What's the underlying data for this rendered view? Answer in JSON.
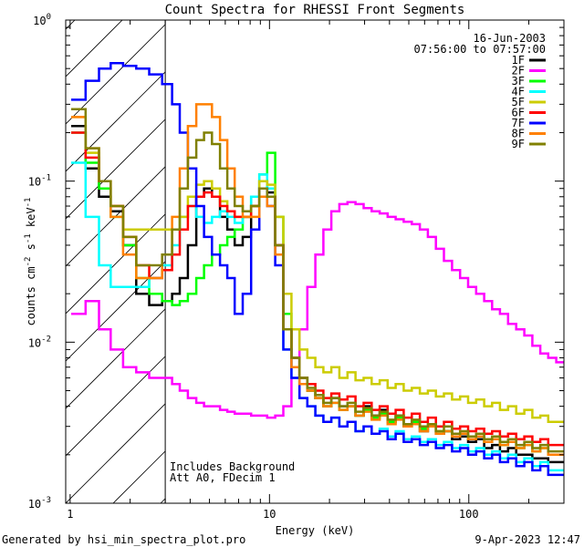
{
  "chart_data": {
    "type": "line",
    "title": "Count Spectra for RHESSI Front Segments",
    "xlabel": "Energy (keV)",
    "ylabel_parts": [
      "counts cm",
      "-2",
      " s",
      "-1",
      " keV",
      "-1"
    ],
    "xscale": "log",
    "yscale": "log",
    "xlim": [
      0.95,
      300
    ],
    "ylim": [
      0.001,
      1
    ],
    "x_ticks": [
      {
        "value": 1,
        "label": "1"
      },
      {
        "value": 10,
        "label": "10"
      },
      {
        "value": 100,
        "label": "100"
      }
    ],
    "y_ticks": [
      {
        "value": 0.001,
        "base": "10",
        "exp": "-3"
      },
      {
        "value": 0.01,
        "base": "10",
        "exp": "-2"
      },
      {
        "value": 0.1,
        "base": "10",
        "exp": "-1"
      },
      {
        "value": 1,
        "base": "10",
        "exp": "0"
      }
    ],
    "hatch_region": {
      "x_from": 0.95,
      "x_to": 3
    },
    "date": "16-Jun-2003",
    "time_range": "07:56:00 to 07:57:00",
    "annotation_lines": [
      "Includes Background",
      "Att A0, FDecim 1"
    ],
    "legend_position": "top-right",
    "energy": [
      1.1,
      1.3,
      1.5,
      1.7,
      2.0,
      2.3,
      2.7,
      3.1,
      3.4,
      3.7,
      4.1,
      4.5,
      4.9,
      5.4,
      5.9,
      6.4,
      7.0,
      7.7,
      8.5,
      9.3,
      10.2,
      11.2,
      12.3,
      13.5,
      14.8,
      16.2,
      17.8,
      19.5,
      21.4,
      23.5,
      25.8,
      28.3,
      31.1,
      34.1,
      37.4,
      41.0,
      45.0,
      49.4,
      54.2,
      59.5,
      65.3,
      71.6,
      78.6,
      86.3,
      94.7,
      104,
      114,
      125,
      137,
      150,
      165,
      181,
      199,
      218,
      239,
      262,
      288
    ],
    "series": [
      {
        "name": "1F",
        "color": "#000000",
        "values": [
          0.22,
          0.12,
          0.08,
          0.065,
          0.04,
          0.02,
          0.017,
          0.018,
          0.02,
          0.025,
          0.04,
          0.08,
          0.09,
          0.08,
          0.06,
          0.05,
          0.04,
          0.045,
          0.07,
          0.1,
          0.085,
          0.04,
          0.012,
          0.008,
          0.006,
          0.005,
          0.0045,
          0.004,
          0.0045,
          0.004,
          0.004,
          0.0035,
          0.004,
          0.0035,
          0.0038,
          0.0032,
          0.0035,
          0.003,
          0.0032,
          0.0028,
          0.003,
          0.0027,
          0.0028,
          0.0025,
          0.0026,
          0.0024,
          0.0025,
          0.0022,
          0.0023,
          0.0021,
          0.0022,
          0.002,
          0.002,
          0.0019,
          0.0019,
          0.0018,
          0.0018
        ]
      },
      {
        "name": "2F",
        "color": "#ff00ff",
        "values": [
          0.015,
          0.018,
          0.012,
          0.009,
          0.007,
          0.0065,
          0.006,
          0.006,
          0.0055,
          0.005,
          0.0045,
          0.0042,
          0.004,
          0.004,
          0.0038,
          0.0037,
          0.0036,
          0.0036,
          0.0035,
          0.0035,
          0.0034,
          0.0035,
          0.004,
          0.006,
          0.012,
          0.022,
          0.035,
          0.05,
          0.065,
          0.072,
          0.074,
          0.072,
          0.068,
          0.065,
          0.063,
          0.06,
          0.058,
          0.056,
          0.054,
          0.05,
          0.045,
          0.038,
          0.032,
          0.028,
          0.025,
          0.022,
          0.02,
          0.018,
          0.016,
          0.015,
          0.013,
          0.012,
          0.011,
          0.0095,
          0.0085,
          0.008,
          0.0075
        ]
      },
      {
        "name": "3F",
        "color": "#00ff00",
        "values": [
          0.2,
          0.13,
          0.09,
          0.06,
          0.04,
          0.025,
          0.02,
          0.018,
          0.017,
          0.018,
          0.02,
          0.025,
          0.03,
          0.035,
          0.04,
          0.045,
          0.05,
          0.06,
          0.08,
          0.11,
          0.15,
          0.06,
          0.015,
          0.008,
          0.006,
          0.005,
          0.0045,
          0.004,
          0.0042,
          0.0038,
          0.004,
          0.0035,
          0.0038,
          0.0034,
          0.0036,
          0.0032,
          0.0034,
          0.003,
          0.0032,
          0.0029,
          0.003,
          0.0028,
          0.0028,
          0.0026,
          0.0027,
          0.0025,
          0.0026,
          0.0024,
          0.0025,
          0.0023,
          0.0024,
          0.0022,
          0.0023,
          0.0021,
          0.0022,
          0.002,
          0.002
        ]
      },
      {
        "name": "4F",
        "color": "#00ffff",
        "values": [
          0.13,
          0.06,
          0.03,
          0.022,
          0.022,
          0.022,
          0.025,
          0.03,
          0.04,
          0.06,
          0.07,
          0.06,
          0.055,
          0.06,
          0.065,
          0.06,
          0.055,
          0.06,
          0.08,
          0.11,
          0.09,
          0.035,
          0.009,
          0.006,
          0.0045,
          0.004,
          0.0035,
          0.0032,
          0.0034,
          0.003,
          0.0032,
          0.0028,
          0.003,
          0.0027,
          0.0029,
          0.0026,
          0.0028,
          0.0025,
          0.0026,
          0.0024,
          0.0025,
          0.0023,
          0.0024,
          0.0022,
          0.0023,
          0.0021,
          0.0022,
          0.002,
          0.0021,
          0.0019,
          0.002,
          0.0018,
          0.0019,
          0.0017,
          0.0018,
          0.0016,
          0.0016
        ]
      },
      {
        "name": "5F",
        "color": "#cccc00",
        "values": [
          0.25,
          0.15,
          0.1,
          0.07,
          0.05,
          0.05,
          0.05,
          0.05,
          0.05,
          0.06,
          0.08,
          0.095,
          0.1,
          0.09,
          0.075,
          0.065,
          0.06,
          0.06,
          0.07,
          0.1,
          0.095,
          0.06,
          0.02,
          0.012,
          0.009,
          0.008,
          0.007,
          0.0065,
          0.007,
          0.006,
          0.0065,
          0.0058,
          0.006,
          0.0055,
          0.0058,
          0.0052,
          0.0055,
          0.005,
          0.0052,
          0.0048,
          0.005,
          0.0046,
          0.0048,
          0.0044,
          0.0046,
          0.0042,
          0.0044,
          0.004,
          0.0042,
          0.0038,
          0.004,
          0.0036,
          0.0038,
          0.0034,
          0.0035,
          0.0032,
          0.0032
        ]
      },
      {
        "name": "6F",
        "color": "#ff0000",
        "values": [
          0.2,
          0.14,
          0.1,
          0.07,
          0.045,
          0.03,
          0.025,
          0.028,
          0.035,
          0.05,
          0.07,
          0.08,
          0.085,
          0.08,
          0.07,
          0.065,
          0.06,
          0.06,
          0.07,
          0.09,
          0.08,
          0.04,
          0.012,
          0.008,
          0.006,
          0.0055,
          0.005,
          0.0045,
          0.0048,
          0.0044,
          0.0046,
          0.004,
          0.0042,
          0.0038,
          0.004,
          0.0036,
          0.0038,
          0.0034,
          0.0036,
          0.0032,
          0.0034,
          0.003,
          0.0032,
          0.0029,
          0.003,
          0.0028,
          0.0029,
          0.0027,
          0.0028,
          0.0026,
          0.0027,
          0.0025,
          0.0026,
          0.0024,
          0.0025,
          0.0023,
          0.0023
        ]
      },
      {
        "name": "7F",
        "color": "#0000ff",
        "values": [
          0.32,
          0.42,
          0.5,
          0.54,
          0.52,
          0.5,
          0.46,
          0.4,
          0.3,
          0.2,
          0.12,
          0.07,
          0.045,
          0.035,
          0.03,
          0.025,
          0.015,
          0.02,
          0.05,
          0.09,
          0.07,
          0.03,
          0.009,
          0.006,
          0.0045,
          0.004,
          0.0035,
          0.0032,
          0.0034,
          0.003,
          0.0032,
          0.0028,
          0.003,
          0.0027,
          0.0028,
          0.0025,
          0.0027,
          0.0024,
          0.0025,
          0.0023,
          0.0024,
          0.0022,
          0.0023,
          0.0021,
          0.0022,
          0.002,
          0.0021,
          0.0019,
          0.002,
          0.0018,
          0.0019,
          0.0017,
          0.0018,
          0.0016,
          0.0017,
          0.0015,
          0.0015
        ]
      },
      {
        "name": "8F",
        "color": "#ff8000",
        "values": [
          0.25,
          0.16,
          0.1,
          0.06,
          0.035,
          0.025,
          0.025,
          0.035,
          0.06,
          0.12,
          0.22,
          0.3,
          0.3,
          0.25,
          0.18,
          0.12,
          0.08,
          0.06,
          0.06,
          0.08,
          0.07,
          0.035,
          0.012,
          0.007,
          0.0055,
          0.005,
          0.0045,
          0.004,
          0.0042,
          0.0038,
          0.004,
          0.0035,
          0.0037,
          0.0033,
          0.0035,
          0.0031,
          0.0033,
          0.003,
          0.0031,
          0.0028,
          0.003,
          0.0027,
          0.0028,
          0.0026,
          0.0027,
          0.0025,
          0.0026,
          0.0024,
          0.0025,
          0.0023,
          0.0024,
          0.0022,
          0.0023,
          0.0021,
          0.0022,
          0.002,
          0.002
        ]
      },
      {
        "name": "9F",
        "color": "#808000",
        "values": [
          0.28,
          0.16,
          0.1,
          0.07,
          0.045,
          0.03,
          0.03,
          0.035,
          0.05,
          0.09,
          0.14,
          0.18,
          0.2,
          0.17,
          0.12,
          0.09,
          0.07,
          0.065,
          0.07,
          0.09,
          0.08,
          0.04,
          0.012,
          0.008,
          0.006,
          0.0052,
          0.0047,
          0.0042,
          0.0045,
          0.004,
          0.0042,
          0.0037,
          0.0039,
          0.0035,
          0.0037,
          0.0033,
          0.0035,
          0.0031,
          0.0033,
          0.003,
          0.0031,
          0.0028,
          0.003,
          0.0027,
          0.0028,
          0.0026,
          0.0027,
          0.0025,
          0.0026,
          0.0024,
          0.0025,
          0.0023,
          0.0024,
          0.0022,
          0.0023,
          0.0021,
          0.0021
        ]
      }
    ]
  },
  "footer": {
    "generated_by": "Generated by hsi_min_spectra_plot.pro",
    "timestamp": "9-Apr-2023 12:47"
  }
}
